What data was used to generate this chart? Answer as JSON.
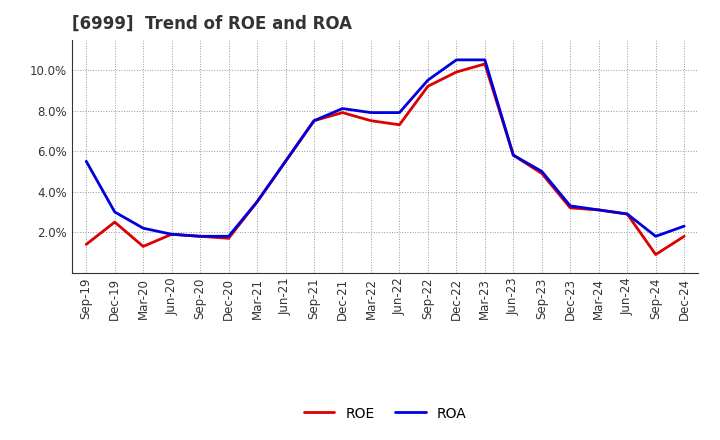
{
  "title": "[6999]  Trend of ROE and ROA",
  "x_labels": [
    "Sep-19",
    "Dec-19",
    "Mar-20",
    "Jun-20",
    "Sep-20",
    "Dec-20",
    "Mar-21",
    "Jun-21",
    "Sep-21",
    "Dec-21",
    "Mar-22",
    "Jun-22",
    "Sep-22",
    "Dec-22",
    "Mar-23",
    "Jun-23",
    "Sep-23",
    "Dec-23",
    "Mar-24",
    "Jun-24",
    "Sep-24",
    "Dec-24"
  ],
  "roe": [
    1.4,
    2.5,
    1.3,
    1.9,
    1.8,
    1.7,
    3.5,
    5.5,
    7.5,
    7.9,
    7.5,
    7.3,
    9.2,
    9.9,
    10.3,
    5.8,
    4.9,
    3.2,
    3.1,
    2.9,
    0.9,
    1.8
  ],
  "roa": [
    5.5,
    3.0,
    2.2,
    1.9,
    1.8,
    1.8,
    3.5,
    5.5,
    7.5,
    8.1,
    7.9,
    7.9,
    9.5,
    10.5,
    10.5,
    5.8,
    5.0,
    3.3,
    3.1,
    2.9,
    1.8,
    2.3
  ],
  "roe_color": "#dd0000",
  "roa_color": "#0000dd",
  "line_width": 2.0,
  "ylim": [
    0,
    11.5
  ],
  "yticks": [
    2.0,
    4.0,
    6.0,
    8.0,
    10.0
  ],
  "background_color": "#ffffff",
  "grid_color": "#999999",
  "title_fontsize": 12,
  "legend_fontsize": 10,
  "tick_fontsize": 8.5
}
